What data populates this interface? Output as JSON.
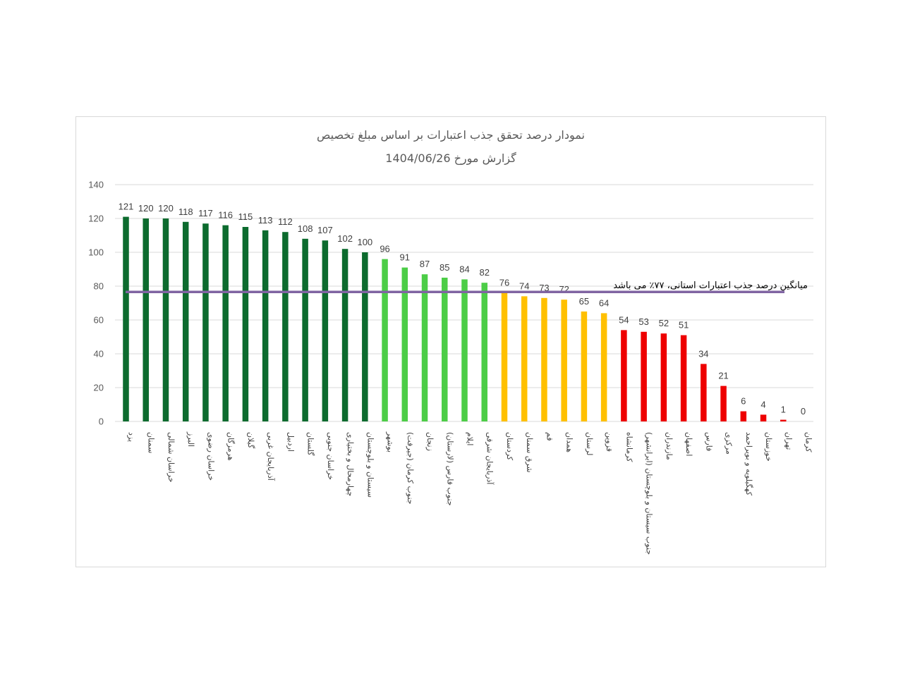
{
  "chart_data": {
    "type": "bar",
    "title": "نمودار درصد تحقق جذب اعتبارات بر اساس مبلغ تخصیص",
    "subtitle": "گزارش مورخ 1404/06/26",
    "xlabel": "",
    "ylabel": "",
    "ylim": [
      0,
      140
    ],
    "yticks": [
      "0",
      "20",
      "40",
      "60",
      "80",
      "100",
      "120",
      "140"
    ],
    "grid": true,
    "categories": [
      "یزد",
      "سمنان",
      "خراسان شمالی",
      "البرز",
      "خراسان رضوی",
      "هرمزگان",
      "گیلان",
      "آذربایجان غربی",
      "اردبیل",
      "گلستان",
      "خراسان جنوبی",
      "چهارمحال و بختیاری",
      "سیستان و بلوچستان",
      "بوشهر",
      "جنوب کرمان (جیرفت)",
      "زنجان",
      "جنوب فارس (لارستان)",
      "ایلام",
      "آذربایجان شرقی",
      "کردستان",
      "شرق سمنان",
      "قم",
      "همدان",
      "لرستان",
      "قزوین",
      "کرمانشاه",
      "جنوب سیستان و بلوچستان (ایرانشهر)",
      "مازندران",
      "اصفهان",
      "فارس",
      "مرکزی",
      "کهگیلویه و بویراحمد",
      "خوزستان",
      "تهران",
      "کرمان"
    ],
    "values": [
      121,
      120,
      120,
      118,
      117,
      116,
      115,
      113,
      112,
      108,
      107,
      102,
      100,
      96,
      91,
      87,
      85,
      84,
      82,
      76,
      74,
      73,
      72,
      65,
      64,
      54,
      53,
      52,
      51,
      34,
      21,
      6,
      4,
      1,
      0
    ],
    "bar_colors": [
      "#0c6b2e",
      "#0c6b2e",
      "#0c6b2e",
      "#0c6b2e",
      "#0c6b2e",
      "#0c6b2e",
      "#0c6b2e",
      "#0c6b2e",
      "#0c6b2e",
      "#0c6b2e",
      "#0c6b2e",
      "#0c6b2e",
      "#0c6b2e",
      "#4ccd47",
      "#4ccd47",
      "#4ccd47",
      "#4ccd47",
      "#4ccd47",
      "#4ccd47",
      "#ffc000",
      "#ffc000",
      "#ffc000",
      "#ffc000",
      "#ffc000",
      "#ffc000",
      "#ee0000",
      "#ee0000",
      "#ee0000",
      "#ee0000",
      "#ee0000",
      "#ee0000",
      "#ee0000",
      "#ee0000",
      "#ee0000",
      "#ee0000"
    ],
    "average_line": {
      "value": 77,
      "label": "میانگین درصد جذب اعتبارات استانی، ۷۷٪ می باشد",
      "color": "#8064a2"
    },
    "gridline_color": "#d9d9d9"
  }
}
